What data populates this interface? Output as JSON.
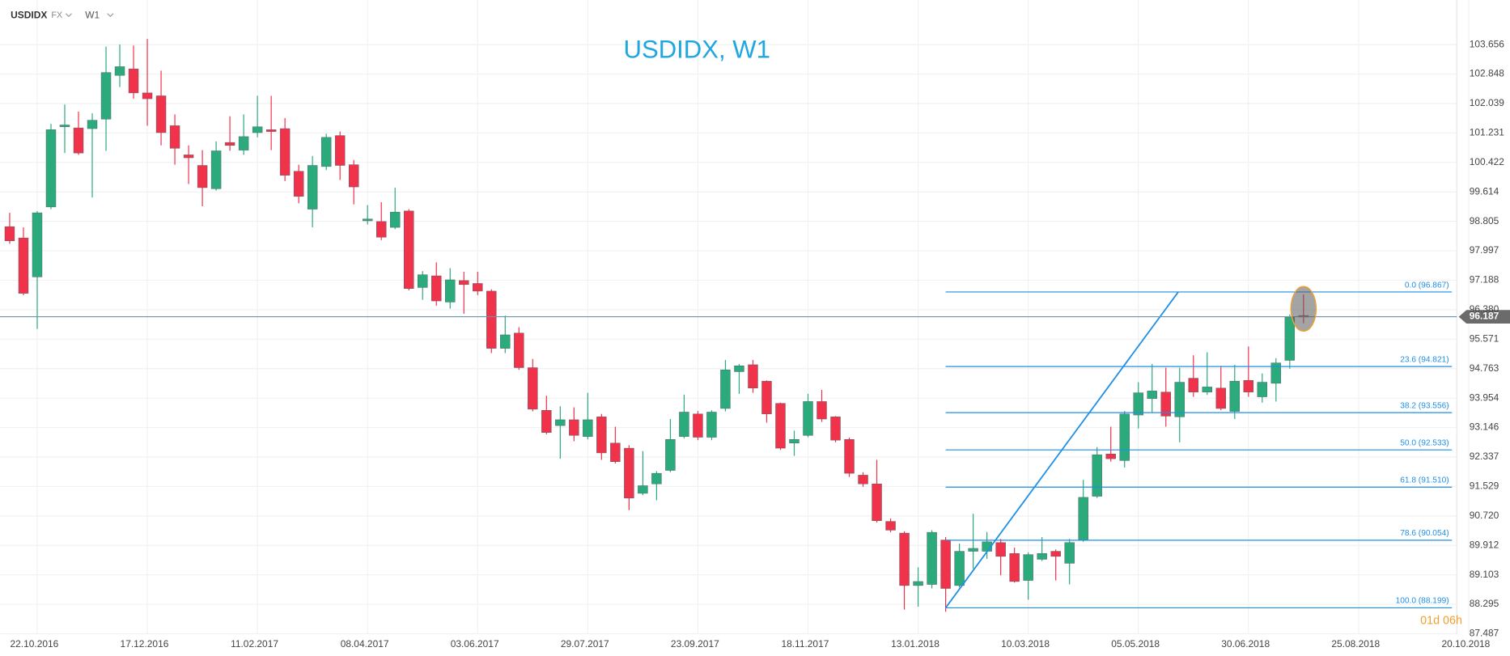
{
  "header": {
    "symbol": "USDIDX",
    "market": "FX",
    "timeframe": "W1"
  },
  "chart_data": {
    "type": "candlestick",
    "title": "USDIDX, W1",
    "categories": [
      null,
      null,
      "22.10.2016",
      null,
      null,
      null,
      null,
      null,
      null,
      null,
      "17.12.2016",
      null,
      null,
      null,
      null,
      null,
      null,
      null,
      "11.02.2017",
      null,
      null,
      null,
      null,
      null,
      null,
      null,
      "08.04.2017",
      null,
      null,
      null,
      null,
      null,
      null,
      null,
      "03.06.2017",
      null,
      null,
      null,
      null,
      null,
      null,
      null,
      "29.07.2017",
      null,
      null,
      null,
      null,
      null,
      null,
      null,
      "23.09.2017",
      null,
      null,
      null,
      null,
      null,
      null,
      null,
      "18.11.2017",
      null,
      null,
      null,
      null,
      null,
      null,
      null,
      "13.01.2018",
      null,
      null,
      null,
      null,
      null,
      null,
      null,
      "10.03.2018",
      null,
      null,
      null,
      null,
      null,
      null,
      null,
      "05.05.2018",
      null,
      null,
      null,
      null,
      null,
      null,
      null,
      "30.06.2018",
      null,
      null,
      null,
      null,
      null,
      null,
      null,
      "25.08.2018",
      null,
      null,
      null,
      null,
      null,
      null,
      null,
      "20.10.2018"
    ],
    "open": [
      98.66,
      98.35,
      97.28,
      99.2,
      101.4,
      101.37,
      101.35,
      101.61,
      102.81,
      102.99,
      102.33,
      102.25,
      101.43,
      100.63,
      100.34,
      99.7,
      100.97,
      100.76,
      101.24,
      101.32,
      101.35,
      100.18,
      99.14,
      100.31,
      101.16,
      100.36,
      98.82,
      98.8,
      98.64,
      99.09,
      96.99,
      97.31,
      96.59,
      97.18,
      97.1,
      96.89,
      95.32,
      95.74,
      94.79,
      93.62,
      93.2,
      93.36,
      92.9,
      93.44,
      92.72,
      92.58,
      91.34,
      91.6,
      91.97,
      92.9,
      93.52,
      92.88,
      93.67,
      94.68,
      94.87,
      94.42,
      93.81,
      92.72,
      92.93,
      93.86,
      93.44,
      92.82,
      91.84,
      91.6,
      90.57,
      90.25,
      88.81,
      88.84,
      90.06,
      88.81,
      89.75,
      89.75,
      89.99,
      89.69,
      88.95,
      89.53,
      89.75,
      89.42,
      90.06,
      91.26,
      92.42,
      92.24,
      93.49,
      93.94,
      94.12,
      93.44,
      94.5,
      94.12,
      94.23,
      93.59,
      94.44,
      93.99,
      94.36,
      94.99,
      96.22,
      null,
      null,
      null,
      null,
      null,
      null,
      null,
      null,
      null,
      null,
      null,
      null
    ],
    "high": [
      99.04,
      98.64,
      99.09,
      101.48,
      102.01,
      101.82,
      101.77,
      103.6,
      103.66,
      103.63,
      103.81,
      102.94,
      101.74,
      100.89,
      100.76,
      101.0,
      101.69,
      101.74,
      102.25,
      102.25,
      101.64,
      100.36,
      100.6,
      101.21,
      101.27,
      100.49,
      99.25,
      99.33,
      99.73,
      99.14,
      97.44,
      97.68,
      97.52,
      97.42,
      97.42,
      96.94,
      96.22,
      95.9,
      95.03,
      94.02,
      93.73,
      93.7,
      94.1,
      93.52,
      93.17,
      92.66,
      92.5,
      91.95,
      93.38,
      94.05,
      93.6,
      93.62,
      95.0,
      94.89,
      95.0,
      94.44,
      93.83,
      93.06,
      94.07,
      94.18,
      93.46,
      92.87,
      91.92,
      92.26,
      90.65,
      90.3,
      89.31,
      90.33,
      90.14,
      89.96,
      90.78,
      90.28,
      90.09,
      89.85,
      89.72,
      90.14,
      89.8,
      90.09,
      91.71,
      92.61,
      93.17,
      93.6,
      94.39,
      94.89,
      94.79,
      94.79,
      95.13,
      95.21,
      94.84,
      94.87,
      95.37,
      94.63,
      95.05,
      96.25,
      96.8,
      null,
      null,
      null,
      null,
      null,
      null,
      null,
      null,
      null,
      null,
      null,
      null
    ],
    "low": [
      98.19,
      96.78,
      95.85,
      99.14,
      100.68,
      100.63,
      99.46,
      100.74,
      102.49,
      102.17,
      101.43,
      100.89,
      100.36,
      99.83,
      99.22,
      99.65,
      100.74,
      100.63,
      101.11,
      100.76,
      99.91,
      99.3,
      98.64,
      100.21,
      99.94,
      99.27,
      98.72,
      98.29,
      98.59,
      96.91,
      96.65,
      96.49,
      96.41,
      96.27,
      96.78,
      95.19,
      95.19,
      94.73,
      93.59,
      92.96,
      92.29,
      92.77,
      92.82,
      92.26,
      92.16,
      90.88,
      91.29,
      91.15,
      91.92,
      92.85,
      92.8,
      92.8,
      93.59,
      94.07,
      94.1,
      93.28,
      92.53,
      92.37,
      92.88,
      93.3,
      92.74,
      91.79,
      91.52,
      90.54,
      90.27,
      88.15,
      88.23,
      88.73,
      88.09,
      88.76,
      89.27,
      89.54,
      89.09,
      88.89,
      88.42,
      89.48,
      88.95,
      88.84,
      90.01,
      91.21,
      92.21,
      92.05,
      93.12,
      93.57,
      93.17,
      92.74,
      93.99,
      94.04,
      93.62,
      93.38,
      93.99,
      93.83,
      93.86,
      94.76,
      96.01,
      null,
      null,
      null,
      null,
      null,
      null,
      null,
      null,
      null,
      null,
      null,
      null
    ],
    "close": [
      98.27,
      96.83,
      99.04,
      101.32,
      101.45,
      100.68,
      101.58,
      102.89,
      103.05,
      102.33,
      102.17,
      101.24,
      100.81,
      100.55,
      99.73,
      100.74,
      100.89,
      101.13,
      101.4,
      101.27,
      100.07,
      99.49,
      100.34,
      101.11,
      100.34,
      99.75,
      98.87,
      98.37,
      99.06,
      96.96,
      97.34,
      96.62,
      97.2,
      97.07,
      96.89,
      95.32,
      95.69,
      94.79,
      93.65,
      93.01,
      93.36,
      92.93,
      93.36,
      92.45,
      92.21,
      91.21,
      91.55,
      91.89,
      92.82,
      93.57,
      92.88,
      93.57,
      94.73,
      94.84,
      94.23,
      93.52,
      92.58,
      92.82,
      93.86,
      93.38,
      92.8,
      91.89,
      91.6,
      90.59,
      90.33,
      88.81,
      88.92,
      90.27,
      88.73,
      89.75,
      89.83,
      90.01,
      89.61,
      88.92,
      89.66,
      89.69,
      89.61,
      89.99,
      91.23,
      92.4,
      92.29,
      93.52,
      94.1,
      94.15,
      93.46,
      94.39,
      94.12,
      94.26,
      93.67,
      94.42,
      94.12,
      94.39,
      94.92,
      96.17,
      96.187,
      null,
      null,
      null,
      null,
      null,
      null,
      null,
      null,
      null,
      null,
      null,
      null
    ],
    "up_color": "#2bab7c",
    "down_color": "#f0324b",
    "ylim": [
      87.487,
      104.88
    ],
    "yticks": [
      103.656,
      102.848,
      102.039,
      101.231,
      100.422,
      99.614,
      98.805,
      97.997,
      97.188,
      {
        "value": 96.38,
        "label": "96.380"
      },
      95.571,
      94.763,
      93.954,
      93.146,
      92.337,
      91.529,
      {
        "value": 90.72,
        "label": "90.720"
      },
      89.912,
      89.103,
      88.295,
      87.487
    ],
    "grid": true,
    "last_price": 96.187,
    "countdown": "01d 06h",
    "fibonacci": {
      "color": "#1e8fe6",
      "levels": [
        {
          "label": "0.0 (96.867)",
          "value": 96.867
        },
        {
          "label": "23.6 (94.821)",
          "value": 94.821
        },
        {
          "label": "38.2 (93.556)",
          "value": 93.556
        },
        {
          "label": "50.0 (92.533)",
          "value": 92.533
        },
        {
          "label": "61.8 (91.510)",
          "value": 91.51
        },
        {
          "label": "78.6 (90.054)",
          "value": 90.054
        },
        {
          "label": "100.0 (88.199)",
          "value": 88.199
        }
      ]
    }
  }
}
